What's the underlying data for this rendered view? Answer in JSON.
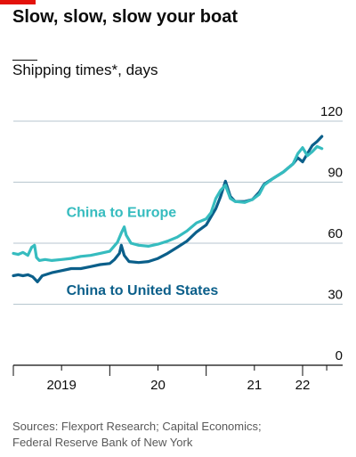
{
  "title": "Slow, slow, slow your boat",
  "subtitle": "Shipping times*, days",
  "source": [
    "Sources: Flexport Research; Capital Economics;",
    "Federal Reserve Bank of New York"
  ],
  "colors": {
    "accent": "#e3120b",
    "europe": "#36bcbf",
    "us": "#0b5f8a",
    "grid": "#b7c6cf",
    "axis": "#0c0c0c"
  },
  "chart_data": {
    "type": "line",
    "ylim": [
      0,
      120
    ],
    "yticks": [
      0,
      30,
      60,
      90,
      120
    ],
    "ytick_labels": [
      "0",
      "30",
      "60",
      "90",
      "120"
    ],
    "xlim": [
      2019.0,
      2022.3
    ],
    "x_major_ticks": [
      2019.0,
      2020.0,
      2021.0,
      2022.0
    ],
    "x_minor_ticks": [
      2019.5,
      2020.5,
      2021.5,
      2022.25
    ],
    "x_labels": [
      {
        "text": "2019",
        "x": 2019.5
      },
      {
        "text": "20",
        "x": 2020.5
      },
      {
        "text": "21",
        "x": 2021.5
      },
      {
        "text": "22",
        "x": 2022.0
      }
    ],
    "series": [
      {
        "name": "China to Europe",
        "color_key": "europe",
        "points": [
          [
            2019.0,
            55
          ],
          [
            2019.05,
            54.5
          ],
          [
            2019.1,
            55.5
          ],
          [
            2019.15,
            54
          ],
          [
            2019.19,
            58
          ],
          [
            2019.22,
            59
          ],
          [
            2019.24,
            53
          ],
          [
            2019.27,
            51.5
          ],
          [
            2019.33,
            52
          ],
          [
            2019.4,
            51.5
          ],
          [
            2019.5,
            52
          ],
          [
            2019.6,
            52.5
          ],
          [
            2019.7,
            53.5
          ],
          [
            2019.8,
            54
          ],
          [
            2019.9,
            55
          ],
          [
            2020.0,
            56
          ],
          [
            2020.08,
            60.5
          ],
          [
            2020.12,
            65
          ],
          [
            2020.15,
            68
          ],
          [
            2020.17,
            64
          ],
          [
            2020.22,
            60
          ],
          [
            2020.3,
            59
          ],
          [
            2020.4,
            58.5
          ],
          [
            2020.5,
            59.5
          ],
          [
            2020.6,
            61
          ],
          [
            2020.7,
            63
          ],
          [
            2020.8,
            66
          ],
          [
            2020.9,
            70
          ],
          [
            2021.0,
            72
          ],
          [
            2021.05,
            75
          ],
          [
            2021.1,
            82
          ],
          [
            2021.15,
            86
          ],
          [
            2021.2,
            88.5
          ],
          [
            2021.25,
            82
          ],
          [
            2021.3,
            80.5
          ],
          [
            2021.4,
            80
          ],
          [
            2021.48,
            81.5
          ],
          [
            2021.55,
            84
          ],
          [
            2021.6,
            88.5
          ],
          [
            2021.7,
            92
          ],
          [
            2021.8,
            95
          ],
          [
            2021.9,
            99
          ],
          [
            2021.95,
            104
          ],
          [
            2022.0,
            107
          ],
          [
            2022.05,
            103
          ],
          [
            2022.1,
            105
          ],
          [
            2022.15,
            107.5
          ],
          [
            2022.2,
            106.5
          ]
        ]
      },
      {
        "name": "China to United States",
        "color_key": "us",
        "points": [
          [
            2019.0,
            44
          ],
          [
            2019.05,
            44.5
          ],
          [
            2019.1,
            44
          ],
          [
            2019.15,
            44.5
          ],
          [
            2019.2,
            43.5
          ],
          [
            2019.25,
            41
          ],
          [
            2019.3,
            44
          ],
          [
            2019.4,
            45.5
          ],
          [
            2019.5,
            46.5
          ],
          [
            2019.6,
            47.5
          ],
          [
            2019.7,
            47.5
          ],
          [
            2019.8,
            48.5
          ],
          [
            2019.9,
            49.5
          ],
          [
            2020.0,
            50
          ],
          [
            2020.05,
            52
          ],
          [
            2020.1,
            55
          ],
          [
            2020.12,
            59
          ],
          [
            2020.15,
            54
          ],
          [
            2020.2,
            51
          ],
          [
            2020.3,
            50.5
          ],
          [
            2020.4,
            51
          ],
          [
            2020.5,
            52.5
          ],
          [
            2020.6,
            55
          ],
          [
            2020.7,
            58
          ],
          [
            2020.8,
            61
          ],
          [
            2020.9,
            65.5
          ],
          [
            2021.0,
            69
          ],
          [
            2021.1,
            77
          ],
          [
            2021.15,
            83
          ],
          [
            2021.2,
            90.5
          ],
          [
            2021.25,
            83
          ],
          [
            2021.3,
            80.5
          ],
          [
            2021.4,
            80.5
          ],
          [
            2021.48,
            81.5
          ],
          [
            2021.55,
            85
          ],
          [
            2021.6,
            89
          ],
          [
            2021.7,
            92
          ],
          [
            2021.8,
            95
          ],
          [
            2021.9,
            99
          ],
          [
            2021.95,
            102
          ],
          [
            2022.0,
            100
          ],
          [
            2022.05,
            104
          ],
          [
            2022.1,
            108
          ],
          [
            2022.15,
            110
          ],
          [
            2022.2,
            112.5
          ]
        ]
      }
    ],
    "series_labels": [
      {
        "series": "China to Europe",
        "x": 2019.55,
        "y": 73
      },
      {
        "series": "China to United States",
        "x": 2019.55,
        "y": 34.5
      }
    ]
  }
}
